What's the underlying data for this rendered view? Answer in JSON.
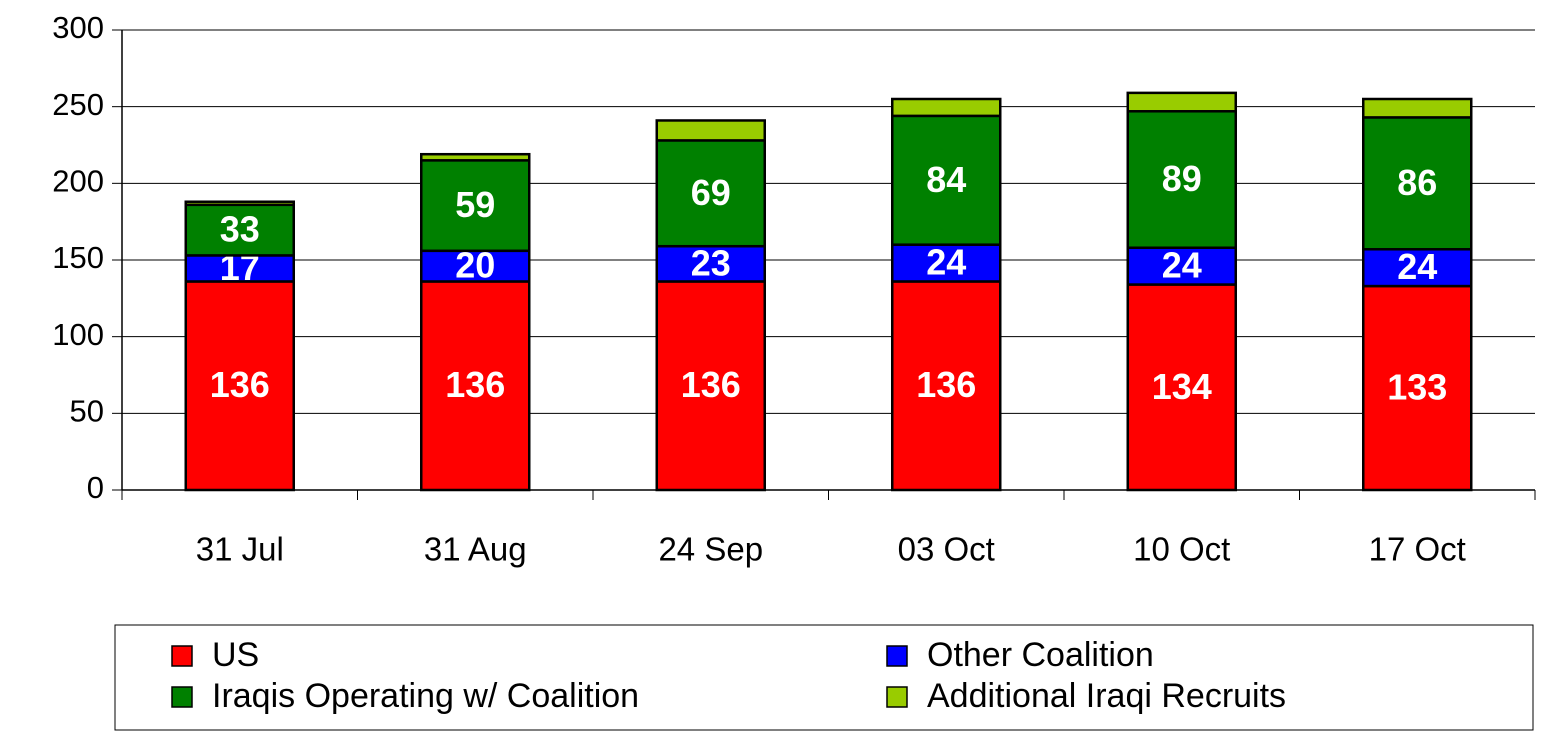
{
  "chart_data": {
    "type": "stacked_bar",
    "categories": [
      "31 Jul",
      "31 Aug",
      "24 Sep",
      "03 Oct",
      "10 Oct",
      "17 Oct"
    ],
    "series": [
      {
        "name": "US",
        "color": "#ff0000",
        "values": [
          136,
          136,
          136,
          136,
          134,
          133
        ],
        "data_labels": true
      },
      {
        "name": "Other Coalition",
        "color": "#0000ff",
        "values": [
          17,
          20,
          23,
          24,
          24,
          24
        ],
        "data_labels": true
      },
      {
        "name": "Iraqis Operating w/ Coalition",
        "color": "#008000",
        "values": [
          33,
          59,
          69,
          84,
          89,
          86
        ],
        "data_labels": true
      },
      {
        "name": "Additional Iraqi Recruits",
        "color": "#99cc00",
        "values": [
          2,
          4,
          13,
          11,
          12,
          12
        ],
        "data_labels": false
      }
    ],
    "ylim": [
      0,
      300
    ],
    "yticks": [
      0,
      50,
      100,
      150,
      200,
      250,
      300
    ],
    "grid": true,
    "legend": "bottom"
  }
}
